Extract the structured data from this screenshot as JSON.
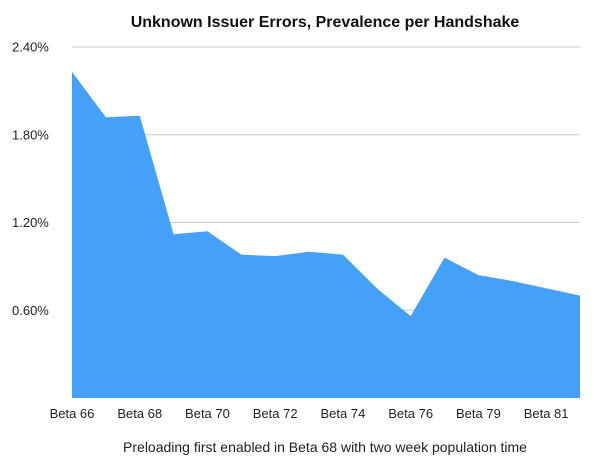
{
  "chart_data": {
    "type": "area",
    "title": "Unknown Issuer Errors, Prevalence per Handshake",
    "xlabel": "Preloading first enabled in Beta 68 with two week population time",
    "ylabel": "",
    "y_ticks": [
      "2.40%",
      "1.80%",
      "1.20%",
      "0.60%"
    ],
    "y_tick_values": [
      2.4,
      1.8,
      1.2,
      0.6
    ],
    "ylim": [
      0,
      2.4
    ],
    "x_ticks": [
      "Beta 66",
      "Beta 68",
      "Beta 70",
      "Beta 72",
      "Beta 74",
      "Beta 76",
      "Beta 79",
      "Beta 81"
    ],
    "grid": true,
    "colors": {
      "area": "#45a1f7",
      "grid": "#c8c8c8"
    },
    "series": [
      {
        "points": [
          {
            "x": 0.0,
            "y": 2.23
          },
          {
            "x": 0.5,
            "y": 1.92
          },
          {
            "x": 1.0,
            "y": 1.93
          },
          {
            "x": 1.5,
            "y": 1.12
          },
          {
            "x": 2.0,
            "y": 1.14
          },
          {
            "x": 2.5,
            "y": 0.98
          },
          {
            "x": 3.0,
            "y": 0.97
          },
          {
            "x": 3.5,
            "y": 1.0
          },
          {
            "x": 4.0,
            "y": 0.98
          },
          {
            "x": 4.5,
            "y": 0.75
          },
          {
            "x": 5.0,
            "y": 0.56
          },
          {
            "x": 5.5,
            "y": 0.96
          },
          {
            "x": 6.0,
            "y": 0.84
          },
          {
            "x": 6.5,
            "y": 0.8
          },
          {
            "x": 7.0,
            "y": 0.75
          },
          {
            "x": 7.5,
            "y": 0.7
          }
        ]
      }
    ]
  }
}
